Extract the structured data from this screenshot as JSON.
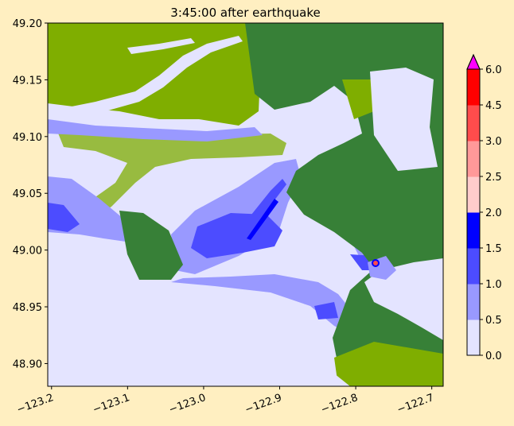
{
  "title": "3:45:00 after earthquake",
  "axes": {
    "xlim": [
      -123.205,
      -122.685
    ],
    "ylim": [
      48.88,
      49.2
    ],
    "x_ticks": [
      -123.2,
      -123.1,
      -123.0,
      -122.9,
      -122.8,
      -122.7
    ],
    "x_tick_labels": [
      "−123.2",
      "−123.1",
      "−123.0",
      "−122.9",
      "−122.8",
      "−122.7"
    ],
    "y_ticks": [
      49.2,
      49.15,
      49.1,
      49.05,
      49.0,
      48.95,
      48.9
    ],
    "y_tick_labels": [
      "49.20",
      "49.15",
      "49.10",
      "49.05",
      "49.00",
      "48.95",
      "48.90"
    ]
  },
  "colors": {
    "water_low": "#e4e4ff",
    "land_low": "#7fae00",
    "land_high": "#378037",
    "figure_bg": "#ffefc1"
  },
  "colorbar": {
    "tick_labels": [
      "0.0",
      "0.5",
      "1.0",
      "1.5",
      "2.0",
      "2.5",
      "3.0",
      "4.5",
      "6.0"
    ],
    "segments": [
      "#e4e4ff",
      "#9999ff",
      "#4c4cff",
      "#0000ff",
      "#ffcccc",
      "#ff9999",
      "#ff4c4c",
      "#ff0000"
    ],
    "extend_color": "#ff00ff"
  }
}
